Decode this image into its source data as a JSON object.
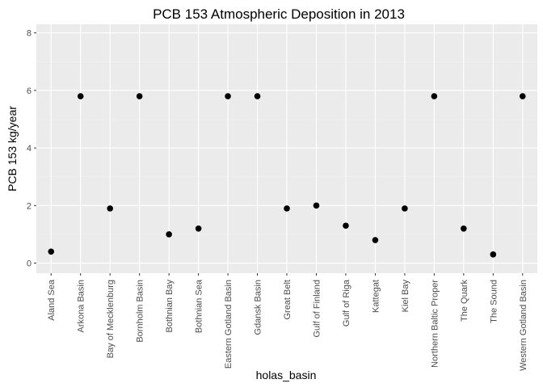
{
  "chart_data": {
    "type": "scatter",
    "title": "PCB 153 Atmospheric Deposition in 2013",
    "xlabel": "holas_basin",
    "ylabel": "PCB 153 kg/year",
    "categories": [
      "Aland Sea",
      "Arkona Basin",
      "Bay of Mecklenburg",
      "Bornholm Basin",
      "Bothnian Bay",
      "Bothnian Sea",
      "Eastern Gotland Basin",
      "Gdansk Basin",
      "Great Belt",
      "Gulf of Finland",
      "Gulf of Riga",
      "Kattegat",
      "Kiel Bay",
      "Northern Baltic Proper",
      "The Quark",
      "The Sound",
      "Western Gotland Basin"
    ],
    "values": [
      0.4,
      5.8,
      1.9,
      5.8,
      1.0,
      1.2,
      5.8,
      5.8,
      1.9,
      2.0,
      1.3,
      0.8,
      1.9,
      5.8,
      1.2,
      0.3,
      5.8
    ],
    "ylim": [
      -0.35,
      8.3
    ],
    "yticks": [
      0,
      2,
      4,
      6,
      8
    ],
    "grid": true,
    "legend": "none",
    "colors": {
      "panel_background": "#ebebeb",
      "grid": "#ffffff",
      "point": "#000000",
      "tick_text": "#4d4d4d"
    }
  }
}
